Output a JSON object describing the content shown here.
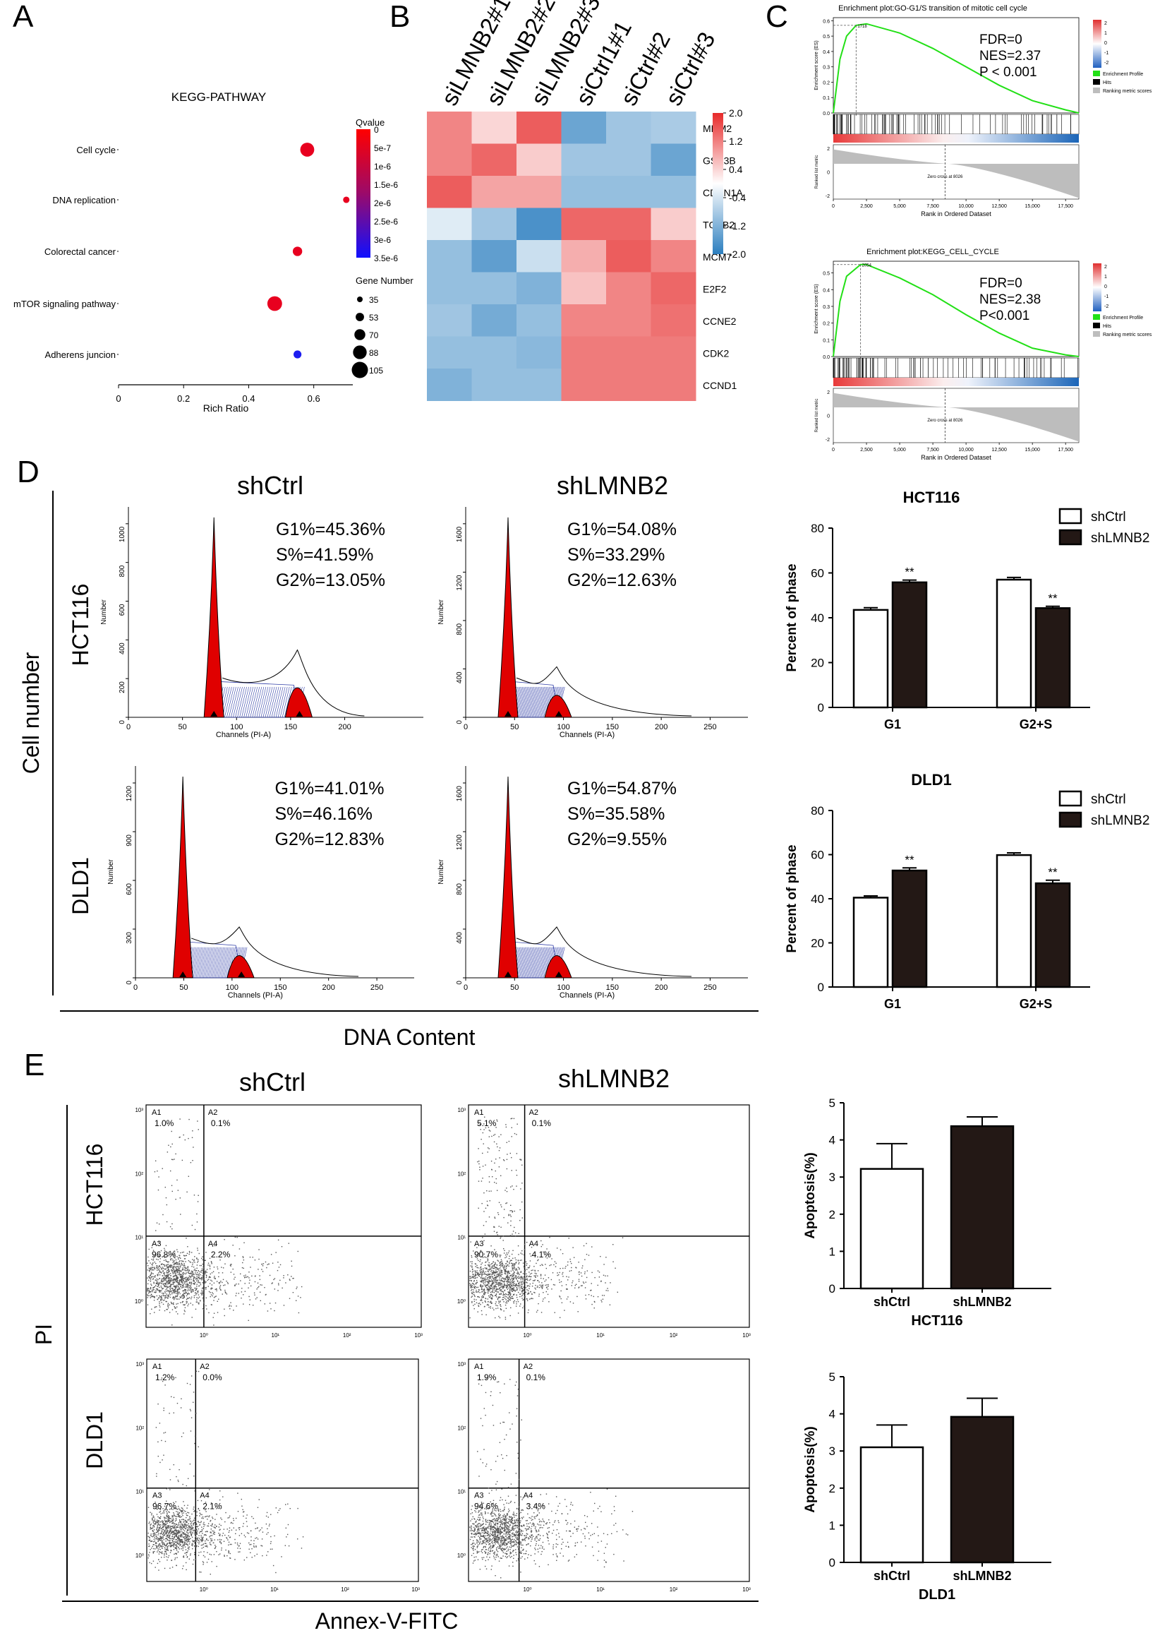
{
  "panel_letters": {
    "A": "A",
    "B": "B",
    "C": "C",
    "D": "D",
    "E": "E"
  },
  "colors": {
    "red": "#e8001f",
    "blue": "#1d1df0",
    "hist_red": "#e00000",
    "hist_blue": "#3340a8",
    "bar_black": "#231815",
    "gsea_green": "#22e016"
  },
  "panelA": {
    "chart_data": {
      "type": "scatter",
      "title": "KEGG-PATHWAY",
      "xlabel": "Rich Ratio",
      "xlim": [
        0,
        0.72
      ],
      "xticks": [
        "0",
        "0.2",
        "0.4",
        "0.6"
      ],
      "categories": [
        "Cell cycle",
        "DNA replication",
        "Colorectal cancer",
        "mTOR signaling pathway",
        "Adherens juncion"
      ],
      "x": [
        0.58,
        0.7,
        0.55,
        0.48,
        0.55
      ],
      "qvalue": [
        0,
        0,
        0,
        0,
        3.5e-06
      ],
      "gene_number": [
        90,
        40,
        60,
        95,
        50
      ],
      "colorbar_title": "Qvalue",
      "colorbar_ticks": [
        "0",
        "5e-7",
        "1e-6",
        "1.5e-6",
        "2e-6",
        "2.5e-6",
        "3e-6",
        "3.5e-6"
      ],
      "size_legend_title": "Gene Number",
      "size_legend": [
        "35",
        "53",
        "70",
        "88",
        "105"
      ]
    }
  },
  "panelB": {
    "chart_data": {
      "type": "heatmap",
      "columns": [
        "siLMNB2#1",
        "siLMNB2#2",
        "siLMNB2#3",
        "siCtrl1#1",
        "siCtrl#2",
        "siCtrl#3"
      ],
      "rows": [
        "MDM2",
        "GSK3B",
        "CDKN1A",
        "TGFB2",
        "MCM7",
        "E2F2",
        "CCNE2",
        "CDK2",
        "CCND1"
      ],
      "values": [
        [
          1.2,
          0.4,
          1.6,
          -1.4,
          -0.9,
          -0.8
        ],
        [
          1.2,
          1.5,
          0.5,
          -0.9,
          -0.9,
          -1.4
        ],
        [
          1.6,
          0.9,
          0.9,
          -1.0,
          -1.0,
          -1.0
        ],
        [
          -0.3,
          -0.9,
          -1.7,
          1.5,
          1.5,
          0.5
        ],
        [
          -1.0,
          -1.5,
          -0.5,
          0.8,
          1.6,
          1.2
        ],
        [
          -1.0,
          -1.0,
          -1.2,
          0.6,
          1.2,
          1.5
        ],
        [
          -0.9,
          -1.3,
          -1.0,
          1.2,
          1.2,
          1.4
        ],
        [
          -1.0,
          -1.0,
          -1.1,
          1.3,
          1.3,
          1.3
        ],
        [
          -1.2,
          -1.0,
          -1.0,
          1.3,
          1.3,
          1.3
        ]
      ],
      "colorbar_ticks": [
        "2.0",
        "1.2",
        "0.4",
        "-0.4",
        "-1.2",
        "-2.0"
      ]
    }
  },
  "panelC": {
    "plots": [
      {
        "chart_data": {
          "type": "line",
          "title": "Enrichment plot:GO-G1/S transition of mitotic cell cycle",
          "ylabel": "Enrichment score (ES)",
          "peak_label": "1718",
          "stats": [
            "FDR=0",
            "NES=2.37",
            "P < 0.001"
          ],
          "rank_ylabel": "Ranked list metric",
          "zero_cross": "Zero cross at 8026",
          "xlabel": "Rank in Ordered Dataset",
          "xticks": [
            "0",
            "2,500",
            "5,000",
            "7,500",
            "10,000",
            "12,500",
            "15,000",
            "17,500"
          ],
          "es_yticks": [
            "0.0",
            "0.1",
            "0.2",
            "0.3",
            "0.4",
            "0.5",
            "0.6"
          ],
          "rank_yticks": [
            "2",
            "0",
            "-2"
          ],
          "x": [
            0,
            500,
            1000,
            1718,
            2500,
            5000,
            7500,
            10000,
            12500,
            15000,
            17500,
            18500
          ],
          "y": [
            0.0,
            0.35,
            0.5,
            0.57,
            0.58,
            0.52,
            0.42,
            0.3,
            0.18,
            0.08,
            0.02,
            0.0
          ]
        }
      },
      {
        "chart_data": {
          "type": "line",
          "title": "Enrichment plot:KEGG_CELL_CYCLE",
          "ylabel": "Enrichment score (ES)",
          "peak_label": "2054",
          "stats": [
            "FDR=0",
            "NES=2.38",
            "P<0.001"
          ],
          "rank_ylabel": "Ranked list metric",
          "zero_cross": "Zero cross at 8026",
          "xlabel": "Rank in Ordered Dataset",
          "xticks": [
            "0",
            "2,500",
            "5,000",
            "7,500",
            "10,000",
            "12,500",
            "15,000",
            "17,500"
          ],
          "es_yticks": [
            "0.0",
            "0.1",
            "0.2",
            "0.3",
            "0.4",
            "0.5"
          ],
          "rank_yticks": [
            "2",
            "0",
            "-2"
          ],
          "x": [
            0,
            500,
            1000,
            2054,
            2500,
            5000,
            7500,
            10000,
            12500,
            15000,
            17500,
            18500
          ],
          "y": [
            0.0,
            0.33,
            0.48,
            0.55,
            0.55,
            0.47,
            0.37,
            0.25,
            0.14,
            0.05,
            0.01,
            0.0
          ]
        }
      }
    ],
    "legend": [
      "Enrichment Profile",
      "Hits",
      "Ranking metric scores"
    ],
    "cb_ticks": [
      "2",
      "1",
      "0",
      "-1",
      "-2"
    ]
  },
  "panelD": {
    "col_titles": [
      "shCtrl",
      "shLMNB2"
    ],
    "row_labels": [
      "HCT116",
      "DLD1"
    ],
    "axis_label": "Cell number",
    "bottom_label": "DNA Content",
    "hist_ylabel": "Number",
    "hist_xlabel": "Channels (PI-A)",
    "histograms": [
      {
        "stats": [
          "G1%=45.36%",
          "S%=41.59%",
          "G2%=13.05%"
        ],
        "yticks": [
          "0",
          "200",
          "400",
          "600",
          "800",
          "1000"
        ],
        "xticks": [
          "0",
          "50",
          "100",
          "150",
          "200"
        ]
      },
      {
        "stats": [
          "G1%=54.08%",
          "S%=33.29%",
          "G2%=12.63%"
        ],
        "yticks": [
          "0",
          "400",
          "800",
          "1200",
          "1600"
        ],
        "xticks": [
          "0",
          "50",
          "100",
          "150",
          "200",
          "250"
        ]
      },
      {
        "stats": [
          "G1%=41.01%",
          "S%=46.16%",
          "G2%=12.83%"
        ],
        "yticks": [
          "0",
          "300",
          "600",
          "900",
          "1200"
        ],
        "xticks": [
          "0",
          "50",
          "100",
          "150",
          "200",
          "250"
        ]
      },
      {
        "stats": [
          "G1%=54.87%",
          "S%=35.58%",
          "G2%=9.55%"
        ],
        "yticks": [
          "0",
          "400",
          "800",
          "1200",
          "1600"
        ],
        "xticks": [
          "0",
          "50",
          "100",
          "150",
          "200",
          "250"
        ]
      }
    ],
    "bar_charts": [
      {
        "chart_data": {
          "type": "bar",
          "title": "HCT116",
          "ylabel": "Percent of phase",
          "categories": [
            "G1",
            "G2+S"
          ],
          "ylim": [
            0,
            80
          ],
          "yticks": [
            "0",
            "20",
            "40",
            "60",
            "80"
          ],
          "series": [
            {
              "name": "shCtrl",
              "values": [
                43.5,
                57
              ]
            },
            {
              "name": "shLMNB2",
              "values": [
                55.8,
                44.3
              ]
            }
          ],
          "errors": [
            [
              1,
              1
            ],
            [
              1,
              0.8
            ]
          ],
          "significance": [
            "**",
            "**"
          ]
        }
      },
      {
        "chart_data": {
          "type": "bar",
          "title": "DLD1",
          "ylabel": "Percent of phase",
          "categories": [
            "G1",
            "G2+S"
          ],
          "ylim": [
            0,
            80
          ],
          "yticks": [
            "0",
            "20",
            "40",
            "60",
            "80"
          ],
          "series": [
            {
              "name": "shCtrl",
              "values": [
                40.5,
                59.8
              ]
            },
            {
              "name": "shLMNB2",
              "values": [
                52.8,
                47
              ]
            }
          ],
          "errors": [
            [
              0.8,
              1
            ],
            [
              1.2,
              1.4
            ]
          ],
          "significance": [
            "**",
            "**"
          ]
        }
      }
    ]
  },
  "panelE": {
    "col_titles": [
      "shCtrl",
      "shLMNB2"
    ],
    "row_labels": [
      "HCT116",
      "DLD1"
    ],
    "axis_label": "PI",
    "bottom_label": "Annex-V-FITC",
    "flow_yticks": [
      "10³",
      "10²",
      "10¹",
      "10⁰"
    ],
    "flow_xticks": [
      "10⁰",
      "10¹",
      "10²",
      "10³"
    ],
    "flows": [
      {
        "q": [
          [
            "A1",
            "1.0%"
          ],
          [
            "A2",
            "0.1%"
          ],
          [
            "A3",
            "96.8%"
          ],
          [
            "A4",
            "2.2%"
          ]
        ]
      },
      {
        "q": [
          [
            "A1",
            "5.1%"
          ],
          [
            "A2",
            "0.1%"
          ],
          [
            "A3",
            "90.7%"
          ],
          [
            "A4",
            "4.1%"
          ]
        ]
      },
      {
        "q": [
          [
            "A1",
            "1.2%"
          ],
          [
            "A2",
            "0.0%"
          ],
          [
            "A3",
            "96.7%"
          ],
          [
            "A4",
            "2.1%"
          ]
        ]
      },
      {
        "q": [
          [
            "A1",
            "1.9%"
          ],
          [
            "A2",
            "0.1%"
          ],
          [
            "A3",
            "94.6%"
          ],
          [
            "A4",
            "3.4%"
          ]
        ]
      }
    ],
    "bar_charts": [
      {
        "chart_data": {
          "type": "bar",
          "title": "HCT116",
          "ylabel": "Apoptosis(%)",
          "categories": [
            "shCtrl",
            "shLMNB2"
          ],
          "ylim": [
            0,
            5
          ],
          "yticks": [
            "0",
            "1",
            "2",
            "3",
            "4",
            "5"
          ],
          "values": [
            3.22,
            4.37
          ],
          "errors": [
            0.68,
            0.25
          ]
        }
      },
      {
        "chart_data": {
          "type": "bar",
          "title": "DLD1",
          "ylabel": "Apoptosis(%)",
          "categories": [
            "shCtrl",
            "shLMNB2"
          ],
          "ylim": [
            0,
            5
          ],
          "yticks": [
            "0",
            "1",
            "2",
            "3",
            "4",
            "5"
          ],
          "values": [
            3.1,
            3.92
          ],
          "errors": [
            0.6,
            0.5
          ]
        }
      }
    ]
  }
}
